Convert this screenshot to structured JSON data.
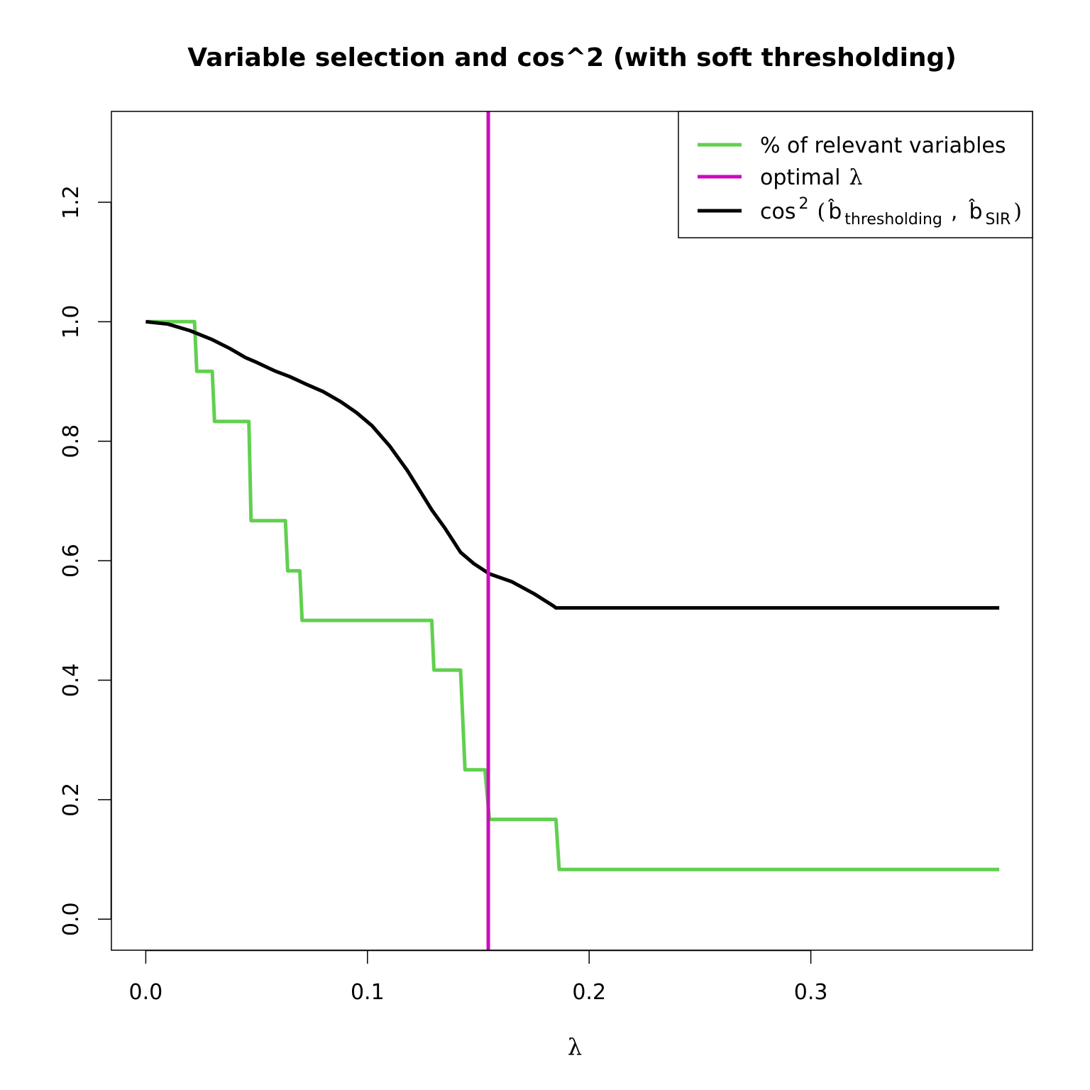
{
  "chart_data": {
    "type": "line",
    "title": "Variable selection and cos^2 (with soft thresholding)",
    "xlabel": "λ",
    "ylabel": "",
    "xlim": [
      -0.0155,
      0.4
    ],
    "ylim": [
      -0.052,
      1.352
    ],
    "x_ticks": [
      0.0,
      0.1,
      0.2,
      0.3
    ],
    "x_tick_labels": [
      "0.0",
      "0.1",
      "0.2",
      "0.3"
    ],
    "y_ticks": [
      0.0,
      0.2,
      0.4,
      0.6,
      0.8,
      1.0,
      1.2
    ],
    "y_tick_labels": [
      "0.0",
      "0.2",
      "0.4",
      "0.6",
      "0.8",
      "1.0",
      "1.2"
    ],
    "grid": false,
    "legend_position": "top-right",
    "legend": [
      {
        "label": "% of relevant variables",
        "color": "#61D04F"
      },
      {
        "label": "optimal λ",
        "color": "#CD0BBC"
      },
      {
        "label": "cos² (b̂thresholding , b̂SIR)",
        "color": "#000000"
      }
    ],
    "legend_parts": {
      "pct": "% of relevant variables",
      "optimal_prefix": "optimal",
      "optimal_symbol": "λ",
      "cos_prefix": "cos",
      "cos_sup": "2",
      "open_paren": "(",
      "b_hat": "b̂",
      "sub_thresholding": "thresholding",
      "comma": ",",
      "sub_sir": "SIR",
      "close_paren": ")"
    },
    "series": [
      {
        "name": "% of relevant variables",
        "color": "#61D04F",
        "x": [
          0.0,
          0.022,
          0.023,
          0.03,
          0.031,
          0.0465,
          0.0475,
          0.063,
          0.064,
          0.0695,
          0.0705,
          0.129,
          0.13,
          0.142,
          0.144,
          0.153,
          0.155,
          0.185,
          0.1865,
          0.385
        ],
        "y": [
          1.0,
          1.0,
          0.917,
          0.917,
          0.833,
          0.833,
          0.667,
          0.667,
          0.583,
          0.583,
          0.5,
          0.5,
          0.417,
          0.417,
          0.25,
          0.25,
          0.167,
          0.167,
          0.083,
          0.083
        ]
      },
      {
        "name": "cos² (b̂thresholding , b̂SIR)",
        "color": "#000000",
        "x": [
          0.0,
          0.01,
          0.02,
          0.03,
          0.038,
          0.045,
          0.05,
          0.058,
          0.065,
          0.072,
          0.08,
          0.088,
          0.095,
          0.102,
          0.11,
          0.118,
          0.124,
          0.129,
          0.135,
          0.142,
          0.148,
          0.155,
          0.165,
          0.175,
          0.184,
          0.185,
          0.385
        ],
        "y": [
          1.0,
          0.996,
          0.985,
          0.97,
          0.955,
          0.94,
          0.932,
          0.918,
          0.908,
          0.896,
          0.883,
          0.866,
          0.848,
          0.826,
          0.792,
          0.751,
          0.715,
          0.685,
          0.654,
          0.614,
          0.595,
          0.578,
          0.565,
          0.545,
          0.524,
          0.521,
          0.521
        ]
      }
    ],
    "vline": {
      "name": "optimal λ",
      "x": 0.1545,
      "color": "#CD0BBC"
    }
  }
}
